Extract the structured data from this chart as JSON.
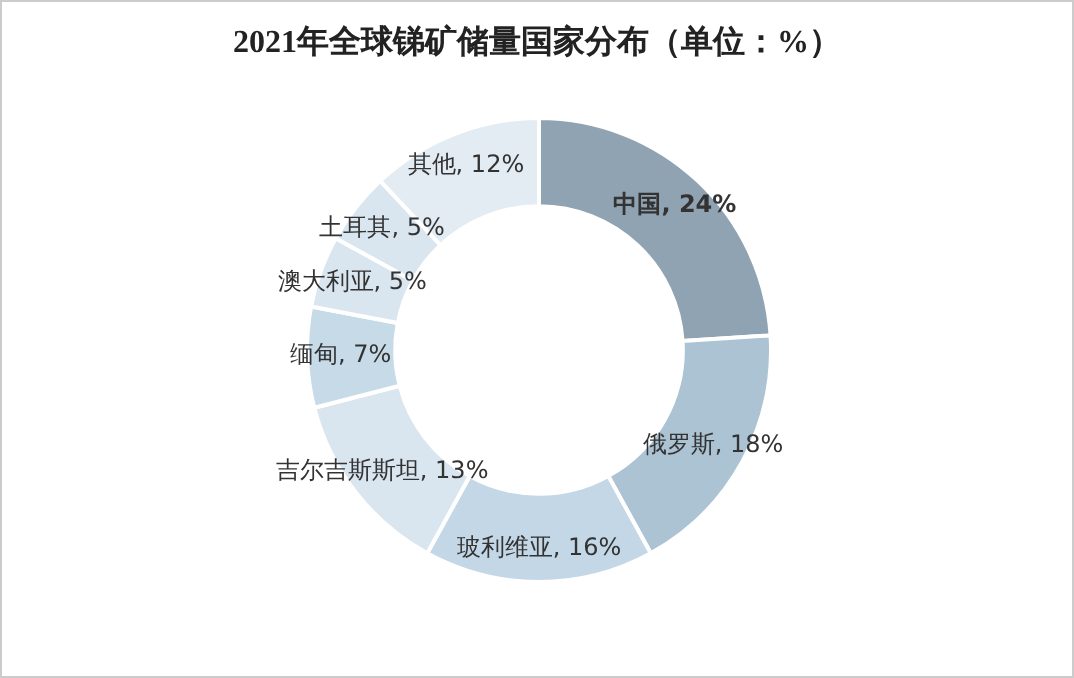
{
  "chart_data": {
    "type": "donut",
    "title": "2021年全球锑矿储量国家分布（单位：%）",
    "categories": [
      "中国",
      "俄罗斯",
      "玻利维亚",
      "吉尔吉斯斯坦",
      "缅甸",
      "澳大利亚",
      "土耳其",
      "其他"
    ],
    "values": [
      24,
      18,
      16,
      13,
      7,
      5,
      5,
      12
    ],
    "colors": [
      "#8fa3b2",
      "#abc3d3",
      "#c3d7e6",
      "#d9e6f0",
      "#c6dae8",
      "#d9e6f0",
      "#d9e6f0",
      "#e3ecf3"
    ],
    "value_labels": [
      "24%",
      "18%",
      "16%",
      "13%",
      "7%",
      "5%",
      "5%",
      "12%"
    ],
    "legend": false
  }
}
